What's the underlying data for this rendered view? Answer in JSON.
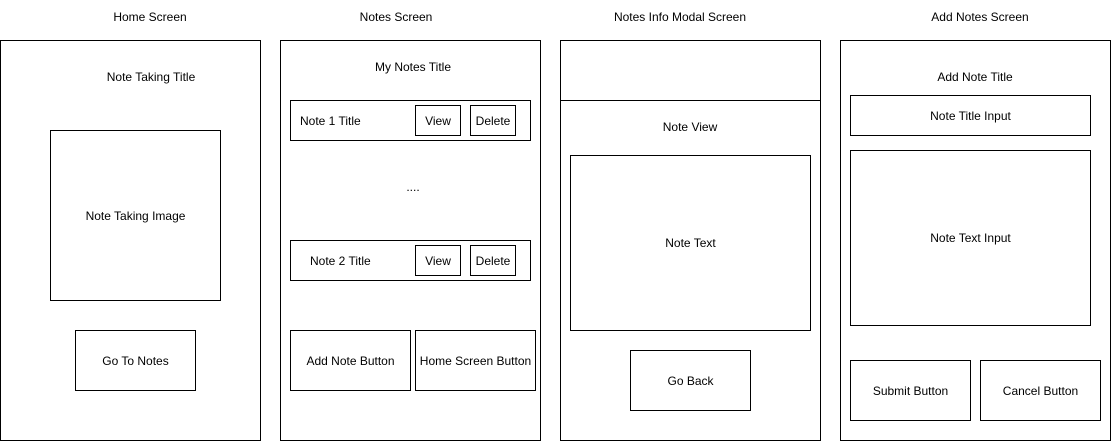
{
  "screens": {
    "home": {
      "heading": "Home Screen",
      "title": "Note Taking Title",
      "image_label": "Note Taking Image",
      "go_to_notes": "Go To Notes"
    },
    "notes": {
      "heading": "Notes Screen",
      "title": "My Notes Title",
      "note1_title": "Note 1 Title",
      "note2_title": "Note 2 Title",
      "view_label": "View",
      "delete_label": "Delete",
      "ellipsis": "....",
      "add_note_button": "Add Note Button",
      "home_screen_button": "Home Screen Button"
    },
    "info_modal": {
      "heading": "Notes Info Modal Screen",
      "note_view": "Note View",
      "note_text": "Note Text",
      "go_back": "Go Back"
    },
    "add_notes": {
      "heading": "Add Notes Screen",
      "title": "Add Note Title",
      "note_title_input": "Note Title Input",
      "note_text_input": "Note Text Input",
      "submit_button": "Submit Button",
      "cancel_button": "Cancel Button"
    }
  }
}
